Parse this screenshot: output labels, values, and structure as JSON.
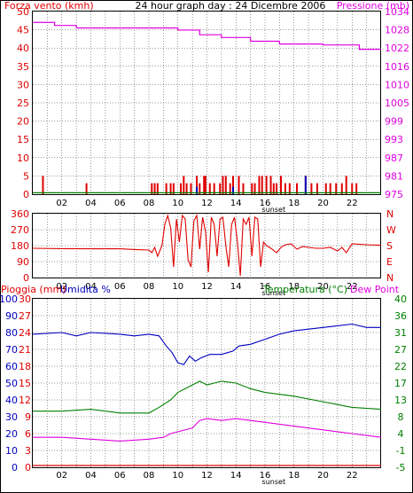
{
  "title": "24 hour graph day : 24 Dicembre 2006",
  "sunset_label": "sunset",
  "x_ticks": [
    "02",
    "04",
    "06",
    "08",
    "10",
    "12",
    "14",
    "16",
    "18",
    "20",
    "22"
  ],
  "colors": {
    "red": "#e00000",
    "magenta": "#e000e0",
    "green": "#008000",
    "blue": "#0000c0",
    "dark": "#000000"
  },
  "chart_data": [
    {
      "type": "bar",
      "title": "24 hour graph day : 24 Dicembre 2006",
      "left_label": "Forza vento (kmh)",
      "right_label": "Pressione (mb)",
      "yticks_left": [
        "0",
        "5",
        "10",
        "15",
        "20",
        "25",
        "30",
        "35",
        "40",
        "45",
        "50"
      ],
      "yticks_right": [
        "975",
        "981",
        "987",
        "993",
        "999",
        "1005",
        "1010",
        "1016",
        "1022",
        "1028",
        "1034"
      ],
      "ylim_left": [
        0,
        50
      ],
      "ylim_right": [
        975,
        1034
      ],
      "xlim": [
        0,
        24
      ],
      "wind_bars": [
        [
          0.7,
          5
        ],
        [
          3.7,
          3
        ],
        [
          8.2,
          3
        ],
        [
          8.4,
          3
        ],
        [
          8.6,
          3
        ],
        [
          9.2,
          3
        ],
        [
          9.5,
          3
        ],
        [
          9.7,
          3
        ],
        [
          10.2,
          3
        ],
        [
          10.4,
          5
        ],
        [
          10.6,
          3
        ],
        [
          10.9,
          3
        ],
        [
          11.3,
          5
        ],
        [
          11.5,
          3
        ],
        [
          11.8,
          5
        ],
        [
          11.9,
          5
        ],
        [
          12.2,
          3
        ],
        [
          12.5,
          3
        ],
        [
          12.9,
          3
        ],
        [
          13.1,
          5
        ],
        [
          13.3,
          5
        ],
        [
          13.6,
          3
        ],
        [
          13.8,
          5
        ],
        [
          14.2,
          5
        ],
        [
          14.5,
          3
        ],
        [
          15.1,
          3
        ],
        [
          15.3,
          3
        ],
        [
          15.6,
          5
        ],
        [
          15.8,
          5
        ],
        [
          16.1,
          5
        ],
        [
          16.4,
          5
        ],
        [
          16.6,
          3
        ],
        [
          16.8,
          3
        ],
        [
          17.1,
          5
        ],
        [
          17.4,
          3
        ],
        [
          17.7,
          3
        ],
        [
          18.2,
          3
        ],
        [
          18.8,
          5
        ],
        [
          19.2,
          3
        ],
        [
          19.6,
          3
        ],
        [
          20.2,
          3
        ],
        [
          20.5,
          3
        ],
        [
          20.9,
          3
        ],
        [
          21.3,
          3
        ],
        [
          21.6,
          5
        ],
        [
          22.0,
          3
        ],
        [
          22.3,
          3
        ]
      ],
      "wind_blue_bars": [
        [
          11.3,
          2
        ],
        [
          13.8,
          2
        ],
        [
          18.8,
          5
        ]
      ],
      "pressure": [
        [
          0,
          1030.5
        ],
        [
          1.5,
          1029.5
        ],
        [
          3,
          1028.7
        ],
        [
          6,
          1028.7
        ],
        [
          10,
          1028
        ],
        [
          11.5,
          1026.5
        ],
        [
          13,
          1025.6
        ],
        [
          15,
          1024.4
        ],
        [
          17,
          1023.5
        ],
        [
          20,
          1023.2
        ],
        [
          22.5,
          1021.8
        ],
        [
          24,
          1021.8
        ]
      ],
      "gust_baseline": 0.4
    },
    {
      "type": "line",
      "left_label": "",
      "yticks_left": [
        "0",
        "90",
        "180",
        "270",
        "360"
      ],
      "yticks_right": [
        "N",
        "E",
        "S",
        "W",
        "N"
      ],
      "ylim": [
        0,
        360
      ],
      "direction": [
        [
          0,
          165
        ],
        [
          2,
          163
        ],
        [
          4,
          162
        ],
        [
          6,
          162
        ],
        [
          7,
          158
        ],
        [
          8,
          155
        ],
        [
          8.2,
          140
        ],
        [
          8.4,
          170
        ],
        [
          8.6,
          120
        ],
        [
          8.9,
          180
        ],
        [
          9.1,
          300
        ],
        [
          9.3,
          350
        ],
        [
          9.5,
          280
        ],
        [
          9.7,
          60
        ],
        [
          9.9,
          330
        ],
        [
          10.1,
          200
        ],
        [
          10.3,
          350
        ],
        [
          10.5,
          330
        ],
        [
          10.7,
          100
        ],
        [
          10.9,
          60
        ],
        [
          11.1,
          320
        ],
        [
          11.3,
          350
        ],
        [
          11.5,
          160
        ],
        [
          11.7,
          340
        ],
        [
          11.9,
          260
        ],
        [
          12.1,
          30
        ],
        [
          12.3,
          340
        ],
        [
          12.5,
          300
        ],
        [
          12.7,
          120
        ],
        [
          12.9,
          330
        ],
        [
          13.1,
          340
        ],
        [
          13.3,
          180
        ],
        [
          13.5,
          60
        ],
        [
          13.7,
          300
        ],
        [
          13.9,
          340
        ],
        [
          14.1,
          200
        ],
        [
          14.3,
          10
        ],
        [
          14.5,
          330
        ],
        [
          14.7,
          300
        ],
        [
          14.9,
          340
        ],
        [
          15.1,
          120
        ],
        [
          15.3,
          340
        ],
        [
          15.5,
          330
        ],
        [
          15.7,
          60
        ],
        [
          15.9,
          200
        ],
        [
          16.1,
          180
        ],
        [
          16.4,
          165
        ],
        [
          16.8,
          140
        ],
        [
          17.1,
          170
        ],
        [
          17.4,
          185
        ],
        [
          17.8,
          190
        ],
        [
          18.2,
          160
        ],
        [
          18.6,
          175
        ],
        [
          19.0,
          170
        ],
        [
          19.5,
          165
        ],
        [
          20.0,
          165
        ],
        [
          20.5,
          170
        ],
        [
          21.0,
          150
        ],
        [
          21.3,
          170
        ],
        [
          21.6,
          140
        ],
        [
          22.0,
          190
        ],
        [
          23,
          185
        ],
        [
          24,
          182
        ]
      ]
    },
    {
      "type": "line",
      "left_label_1": "Pioggia (mm)",
      "left_label_2": "Umidita %",
      "right_label_1": "Temperatura (°C)",
      "right_label_2": "Dew Point",
      "yticks_rain": [
        "0",
        "3",
        "6",
        "9",
        "12",
        "15",
        "18",
        "21",
        "24",
        "27",
        "30"
      ],
      "yticks_hum": [
        "0",
        "10",
        "20",
        "30",
        "40",
        "50",
        "60",
        "70",
        "80",
        "90",
        "100"
      ],
      "yticks_temp": [
        "-5",
        "-1",
        "4",
        "8",
        "13",
        "17",
        "22",
        "27",
        "31",
        "36",
        "40"
      ],
      "ylim_hum": [
        0,
        100
      ],
      "ylim_temp": [
        -5,
        40
      ],
      "humidity": [
        [
          0,
          79
        ],
        [
          2,
          80
        ],
        [
          3,
          78
        ],
        [
          4,
          80
        ],
        [
          6,
          79
        ],
        [
          7,
          78
        ],
        [
          8,
          79
        ],
        [
          8.7,
          78
        ],
        [
          9.2,
          72
        ],
        [
          9.6,
          68
        ],
        [
          10,
          62
        ],
        [
          10.4,
          61
        ],
        [
          10.8,
          66
        ],
        [
          11.2,
          63
        ],
        [
          11.6,
          65
        ],
        [
          12.2,
          67
        ],
        [
          13,
          67
        ],
        [
          13.8,
          69
        ],
        [
          14.2,
          72
        ],
        [
          15,
          73
        ],
        [
          16,
          76
        ],
        [
          17,
          79
        ],
        [
          18,
          81
        ],
        [
          19,
          82
        ],
        [
          20,
          83
        ],
        [
          21,
          84
        ],
        [
          22,
          85
        ],
        [
          23,
          83
        ],
        [
          24,
          83
        ]
      ],
      "temperature": [
        [
          0,
          10
        ],
        [
          2,
          10
        ],
        [
          4,
          10.5
        ],
        [
          6,
          9.5
        ],
        [
          8,
          9.5
        ],
        [
          8.7,
          11
        ],
        [
          9.5,
          13
        ],
        [
          10,
          15
        ],
        [
          11,
          17
        ],
        [
          11.5,
          18
        ],
        [
          12,
          17
        ],
        [
          13,
          18
        ],
        [
          14,
          17.5
        ],
        [
          15,
          16
        ],
        [
          16,
          15
        ],
        [
          18,
          14
        ],
        [
          20,
          12.5
        ],
        [
          22,
          11
        ],
        [
          24,
          10.5
        ]
      ],
      "dewpoint": [
        [
          0,
          3
        ],
        [
          2,
          3
        ],
        [
          4,
          2.5
        ],
        [
          6,
          2
        ],
        [
          8,
          2.5
        ],
        [
          9,
          3
        ],
        [
          9.5,
          4
        ],
        [
          10,
          4.5
        ],
        [
          11,
          5.5
        ],
        [
          11.5,
          7.5
        ],
        [
          12,
          8
        ],
        [
          13,
          7.5
        ],
        [
          14,
          8
        ],
        [
          15,
          7.5
        ],
        [
          16,
          7
        ],
        [
          18,
          6
        ],
        [
          20,
          5
        ],
        [
          22,
          4
        ],
        [
          24,
          3
        ]
      ],
      "rain": [
        [
          0,
          0
        ],
        [
          24,
          0
        ]
      ]
    }
  ]
}
